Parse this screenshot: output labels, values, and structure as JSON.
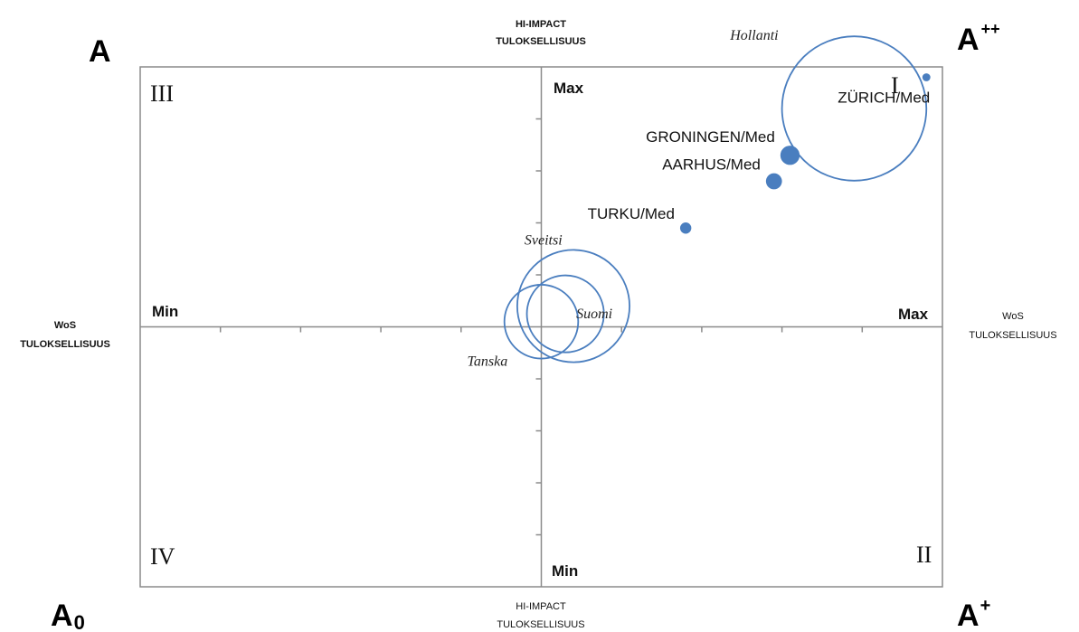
{
  "corners": {
    "top_left": {
      "base": "A",
      "sup": "",
      "sub": ""
    },
    "top_right": {
      "base": "A",
      "sup": "++",
      "sub": ""
    },
    "bottom_left": {
      "base": "A",
      "sup": "",
      "sub": "0"
    },
    "bottom_right": {
      "base": "A",
      "sup": "+",
      "sub": ""
    }
  },
  "axes": {
    "top": [
      "HI-IMPACT",
      "TULOKSELLISUUS"
    ],
    "bottom": [
      "HI-IMPACT",
      "TULOKSELLISUUS"
    ],
    "left": [
      "WoS",
      "TULOKSELLISUUS"
    ],
    "right": [
      "WoS",
      "TULOKSELLISUUS"
    ],
    "y_max": "Max",
    "y_min": "Min",
    "x_min": "Min",
    "x_max": "Max"
  },
  "quadrants": {
    "I": "I",
    "II": "II",
    "III": "III",
    "IV": "IV"
  },
  "chart_data": {
    "type": "scatter",
    "xlim": [
      -5,
      5
    ],
    "ylim": [
      -5,
      5
    ],
    "x_ticks": [
      -4,
      -3,
      -2,
      -1,
      1,
      2,
      3,
      4
    ],
    "y_ticks": [
      -4,
      -3,
      -2,
      -1,
      1,
      2,
      3,
      4
    ],
    "series": [
      {
        "points": [
          {
            "label": "ZÜRICH/Med",
            "x": 4.8,
            "y": 4.8,
            "size": 0.05,
            "style": "filled",
            "label_font": "sans",
            "label_pos": "below"
          },
          {
            "label": "Hollanti",
            "x": 3.9,
            "y": 4.2,
            "size": 0.9,
            "style": "hollow",
            "label_font": "italic",
            "label_pos": "upper-left"
          },
          {
            "label": "GRONINGEN/Med",
            "x": 3.1,
            "y": 3.3,
            "size": 0.12,
            "style": "filled",
            "label_font": "sans",
            "label_pos": "upper-left"
          },
          {
            "label": "AARHUS/Med",
            "x": 2.9,
            "y": 2.8,
            "size": 0.1,
            "style": "filled",
            "label_font": "sans",
            "label_pos": "upper-left"
          },
          {
            "label": "TURKU/Med",
            "x": 1.8,
            "y": 1.9,
            "size": 0.07,
            "style": "filled",
            "label_font": "sans",
            "label_pos": "upper-left"
          },
          {
            "label": "Sveitsi",
            "x": 0.4,
            "y": 0.4,
            "size": 0.7,
            "style": "hollow",
            "label_font": "italic",
            "label_pos": "above"
          },
          {
            "label": "Suomi",
            "x": 0.3,
            "y": 0.25,
            "size": 0.48,
            "style": "hollow",
            "label_font": "italic",
            "label_pos": "right"
          },
          {
            "label": "Tanska",
            "x": 0.0,
            "y": 0.1,
            "size": 0.46,
            "style": "hollow",
            "label_font": "italic",
            "label_pos": "lower-left"
          }
        ]
      }
    ]
  }
}
